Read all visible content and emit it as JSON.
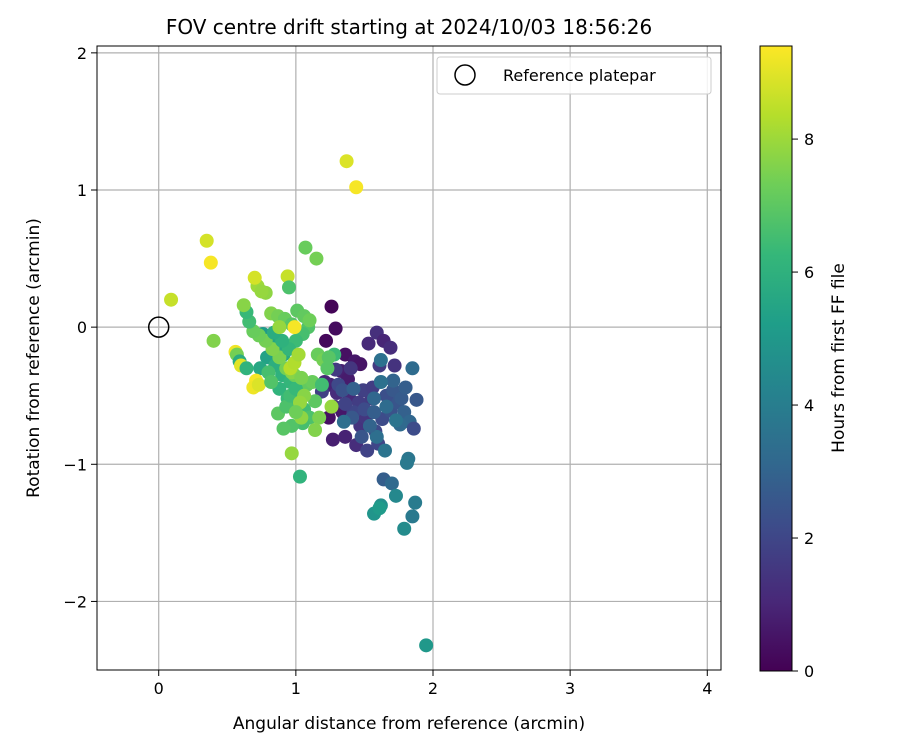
{
  "chart_data": {
    "type": "scatter",
    "title": "FOV centre drift starting at 2024/10/03 18:56:26",
    "xlabel": "Angular distance from reference (arcmin)",
    "ylabel": "Rotation from reference (arcmin)",
    "xlim": [
      -0.45,
      4.1
    ],
    "ylim": [
      -2.5,
      2.05
    ],
    "xticks": [
      0,
      1,
      2,
      3,
      4
    ],
    "yticks": [
      -2,
      -1,
      0,
      1,
      2
    ],
    "xtick_labels": [
      "0",
      "1",
      "2",
      "3",
      "4"
    ],
    "ytick_labels": [
      "−2",
      "−1",
      "0",
      "1",
      "2"
    ],
    "grid": true,
    "legend": {
      "placement": "top-right",
      "label": "Reference platepar"
    },
    "reference_point": {
      "x": 0,
      "y": 0
    },
    "colorbar": {
      "label": "Hours from first FF file",
      "range": [
        0,
        9.4
      ],
      "ticks": [
        0,
        2,
        4,
        6,
        8
      ],
      "tick_labels": [
        "0",
        "2",
        "4",
        "6",
        "8"
      ],
      "colormap": [
        "#440154",
        "#482878",
        "#3e4989",
        "#31688e",
        "#26828e",
        "#1f9e89",
        "#35b779",
        "#6ece58",
        "#b5de2b",
        "#fde725"
      ]
    },
    "points": [
      [
        1.26,
        0.15,
        0.1
      ],
      [
        1.29,
        -0.01,
        0.3
      ],
      [
        1.22,
        -0.1,
        0.2
      ],
      [
        1.36,
        -0.2,
        0.4
      ],
      [
        1.43,
        -0.25,
        0.6
      ],
      [
        1.47,
        -0.27,
        0.5
      ],
      [
        1.33,
        -0.32,
        0.8
      ],
      [
        1.38,
        -0.38,
        0.7
      ],
      [
        1.25,
        -0.42,
        0.9
      ],
      [
        1.21,
        -0.4,
        1.0
      ],
      [
        1.3,
        -0.48,
        1.2
      ],
      [
        1.39,
        -0.52,
        1.1
      ],
      [
        1.28,
        -0.58,
        1.3
      ],
      [
        1.24,
        -0.66,
        0.4
      ],
      [
        1.34,
        -0.62,
        0.6
      ],
      [
        1.27,
        -0.82,
        0.8
      ],
      [
        1.36,
        -0.8,
        0.9
      ],
      [
        1.44,
        -0.86,
        1.2
      ],
      [
        1.47,
        -0.72,
        1.4
      ],
      [
        1.51,
        -0.66,
        1.5
      ],
      [
        1.55,
        -0.52,
        1.6
      ],
      [
        1.49,
        -0.46,
        1.8
      ],
      [
        1.56,
        -0.44,
        1.7
      ],
      [
        1.53,
        -0.12,
        1.1
      ],
      [
        1.59,
        -0.04,
        1.3
      ],
      [
        1.64,
        -0.1,
        1.0
      ],
      [
        1.69,
        -0.15,
        1.2
      ],
      [
        1.72,
        -0.28,
        1.4
      ],
      [
        1.61,
        -0.28,
        1.6
      ],
      [
        1.52,
        -0.9,
        1.9
      ],
      [
        1.6,
        -0.85,
        2.0
      ],
      [
        1.58,
        -0.76,
        2.1
      ],
      [
        1.63,
        -0.67,
        2.2
      ],
      [
        1.69,
        -0.61,
        2.4
      ],
      [
        1.74,
        -0.55,
        2.5
      ],
      [
        1.66,
        -0.5,
        2.3
      ],
      [
        1.71,
        -0.46,
        2.6
      ],
      [
        1.77,
        -0.52,
        2.7
      ],
      [
        1.8,
        -0.44,
        2.8
      ],
      [
        1.71,
        -0.39,
        3.0
      ],
      [
        1.79,
        -0.62,
        2.9
      ],
      [
        1.83,
        -0.69,
        3.1
      ],
      [
        1.76,
        -0.71,
        3.2
      ],
      [
        1.86,
        -0.74,
        2.2
      ],
      [
        1.88,
        -0.53,
        2.6
      ],
      [
        1.85,
        -0.3,
        3.3
      ],
      [
        1.62,
        -0.24,
        3.5
      ],
      [
        1.59,
        -0.8,
        3.4
      ],
      [
        1.65,
        -0.9,
        3.6
      ],
      [
        1.82,
        -0.96,
        3.7
      ],
      [
        1.81,
        -0.99,
        3.8
      ],
      [
        1.64,
        -1.11,
        2.8
      ],
      [
        1.7,
        -1.14,
        3.2
      ],
      [
        1.73,
        -1.23,
        4.4
      ],
      [
        1.87,
        -1.28,
        3.9
      ],
      [
        1.85,
        -1.38,
        3.8
      ],
      [
        1.79,
        -1.47,
        4.5
      ],
      [
        1.62,
        -1.3,
        4.7
      ],
      [
        1.57,
        -1.36,
        4.9
      ],
      [
        1.61,
        -1.32,
        5.1
      ],
      [
        1.95,
        -2.32,
        5.0
      ],
      [
        1.4,
        -0.3,
        1.5
      ],
      [
        1.46,
        -0.55,
        1.7
      ],
      [
        1.42,
        -0.62,
        2.0
      ],
      [
        1.5,
        -0.6,
        2.2
      ],
      [
        1.36,
        -0.56,
        1.9
      ],
      [
        1.31,
        -0.42,
        2.1
      ],
      [
        1.34,
        -0.46,
        2.4
      ],
      [
        1.41,
        -0.66,
        2.6
      ],
      [
        1.57,
        -0.62,
        2.8
      ],
      [
        1.54,
        -0.72,
        3.0
      ],
      [
        1.66,
        -0.58,
        3.3
      ],
      [
        1.62,
        -0.4,
        3.5
      ],
      [
        1.73,
        -0.68,
        3.6
      ],
      [
        1.29,
        -0.31,
        1.6
      ],
      [
        1.48,
        -0.8,
        2.5
      ],
      [
        1.19,
        -0.47,
        1.8
      ],
      [
        1.42,
        -0.45,
        2.9
      ],
      [
        1.57,
        -0.52,
        3.1
      ],
      [
        1.35,
        -0.69,
        3.4
      ],
      [
        0.76,
        -0.05,
        5.1
      ],
      [
        0.82,
        -0.08,
        5.3
      ],
      [
        0.86,
        -0.14,
        5.5
      ],
      [
        0.91,
        -0.2,
        5.7
      ],
      [
        0.79,
        -0.22,
        5.4
      ],
      [
        0.74,
        -0.3,
        5.6
      ],
      [
        0.85,
        -0.28,
        5.9
      ],
      [
        0.9,
        -0.35,
        6.0
      ],
      [
        0.96,
        -0.4,
        6.2
      ],
      [
        0.88,
        -0.45,
        6.1
      ],
      [
        0.94,
        -0.52,
        6.3
      ],
      [
        1.0,
        -0.56,
        6.4
      ],
      [
        1.06,
        -0.6,
        6.5
      ],
      [
        1.1,
        -0.66,
        6.7
      ],
      [
        1.05,
        -0.7,
        6.6
      ],
      [
        0.97,
        -0.72,
        6.8
      ],
      [
        0.91,
        -0.74,
        6.9
      ],
      [
        1.02,
        -0.48,
        7.0
      ],
      [
        1.08,
        -0.42,
        7.1
      ],
      [
        1.12,
        -0.4,
        7.2
      ],
      [
        0.99,
        -0.35,
        7.3
      ],
      [
        0.93,
        -0.3,
        7.4
      ],
      [
        0.88,
        -0.22,
        7.5
      ],
      [
        0.83,
        -0.16,
        7.6
      ],
      [
        0.78,
        -0.1,
        7.4
      ],
      [
        0.73,
        -0.06,
        7.3
      ],
      [
        0.69,
        -0.03,
        7.2
      ],
      [
        0.66,
        0.04,
        6.5
      ],
      [
        0.64,
        0.11,
        6.3
      ],
      [
        0.62,
        0.16,
        7.7
      ],
      [
        0.78,
        0.25,
        7.8
      ],
      [
        0.72,
        0.3,
        8.0
      ],
      [
        0.7,
        0.36,
        8.8
      ],
      [
        0.75,
        0.26,
        7.9
      ],
      [
        0.82,
        0.1,
        7.6
      ],
      [
        0.87,
        0.08,
        7.4
      ],
      [
        0.92,
        0.06,
        7.2
      ],
      [
        0.97,
        0.02,
        6.9
      ],
      [
        1.01,
        0.12,
        7.0
      ],
      [
        1.06,
        0.08,
        7.1
      ],
      [
        1.09,
        0.0,
        6.8
      ],
      [
        1.1,
        0.05,
        7.3
      ],
      [
        1.05,
        -0.05,
        6.6
      ],
      [
        1.0,
        -0.1,
        6.4
      ],
      [
        0.95,
        -0.16,
        6.2
      ],
      [
        0.9,
        -0.1,
        6.0
      ],
      [
        0.84,
        -0.04,
        5.8
      ],
      [
        1.16,
        -0.2,
        7.2
      ],
      [
        1.2,
        -0.24,
        7.4
      ],
      [
        1.23,
        -0.3,
        6.9
      ],
      [
        1.19,
        -0.42,
        6.5
      ],
      [
        1.14,
        -0.54,
        7.0
      ],
      [
        1.17,
        -0.66,
        7.5
      ],
      [
        1.14,
        -0.75,
        7.6
      ],
      [
        1.04,
        -0.66,
        7.8
      ],
      [
        0.97,
        -0.92,
        7.9
      ],
      [
        1.03,
        -1.09,
        6.1
      ],
      [
        0.97,
        -0.33,
        7.7
      ],
      [
        0.96,
        -0.3,
        8.4
      ],
      [
        0.99,
        -0.26,
        8.3
      ],
      [
        1.02,
        -0.2,
        8.1
      ],
      [
        0.99,
        0.0,
        9.3
      ],
      [
        0.94,
        0.37,
        8.6
      ],
      [
        0.95,
        0.29,
        6.7
      ],
      [
        1.07,
        0.58,
        7.2
      ],
      [
        1.15,
        0.5,
        7.4
      ],
      [
        1.26,
        -0.58,
        7.9
      ],
      [
        1.28,
        -0.2,
        6.4
      ],
      [
        1.24,
        -0.22,
        6.9
      ],
      [
        0.56,
        -0.18,
        9.2
      ],
      [
        0.57,
        -0.2,
        7.4
      ],
      [
        0.59,
        -0.25,
        5.8
      ],
      [
        0.6,
        -0.28,
        9.0
      ],
      [
        0.64,
        -0.3,
        6.1
      ],
      [
        0.71,
        -0.39,
        9.3
      ],
      [
        0.69,
        -0.44,
        9.2
      ],
      [
        0.73,
        -0.42,
        8.9
      ],
      [
        0.4,
        -0.1,
        7.6
      ],
      [
        0.35,
        0.63,
        8.8
      ],
      [
        0.38,
        0.47,
        9.3
      ],
      [
        0.09,
        0.2,
        8.6
      ],
      [
        1.37,
        1.21,
        8.9
      ],
      [
        1.44,
        1.02,
        9.3
      ],
      [
        0.87,
        -0.63,
        7.0
      ],
      [
        0.93,
        -0.58,
        6.7
      ],
      [
        0.96,
        -0.5,
        6.5
      ],
      [
        1.0,
        -0.45,
        6.3
      ],
      [
        0.8,
        -0.33,
        6.6
      ],
      [
        0.82,
        -0.4,
        6.8
      ],
      [
        0.88,
        0.0,
        7.9
      ],
      [
        1.04,
        -0.37,
        7.5
      ],
      [
        1.06,
        -0.5,
        7.7
      ],
      [
        1.03,
        -0.55,
        7.9
      ],
      [
        1.0,
        -0.62,
        7.3
      ]
    ]
  }
}
